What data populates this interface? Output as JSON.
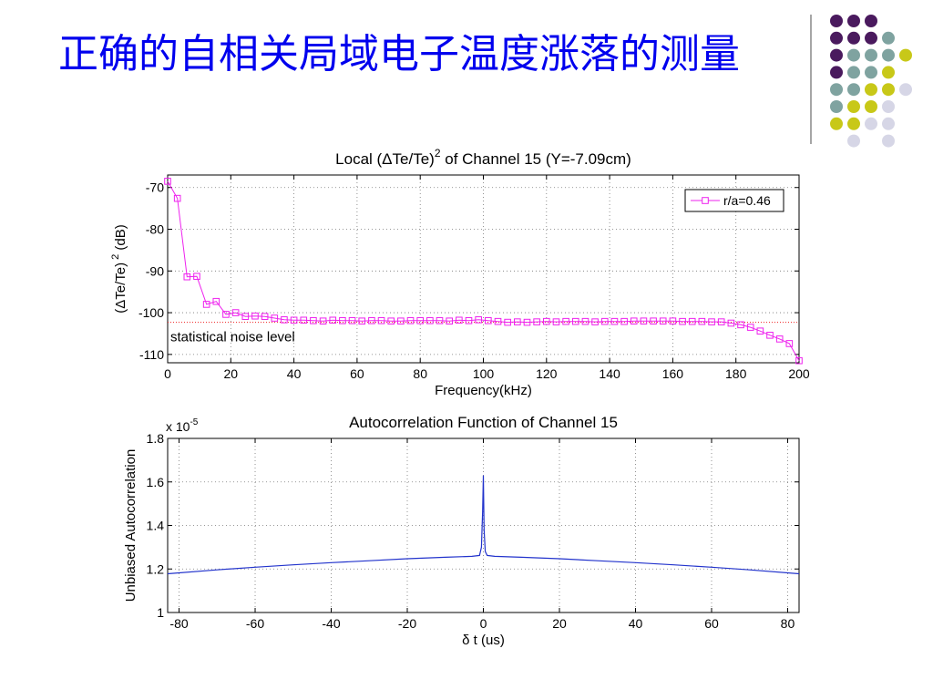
{
  "slide": {
    "title": "正确的自相关局域电子温度涨落的测量",
    "palette": {
      "purple": "#4a1a5e",
      "teal": "#7fa3a0",
      "yellow": "#c8c818",
      "lavender": "#d6d6e6",
      "title": "#0000ee",
      "divider": "#888888"
    },
    "dot_grid": [
      [
        "purple",
        "purple",
        "purple",
        null,
        null
      ],
      [
        "purple",
        "purple",
        "purple",
        "teal",
        null
      ],
      [
        "purple",
        "teal",
        "teal",
        "teal",
        "yellow"
      ],
      [
        "purple",
        "teal",
        "teal",
        "yellow",
        null
      ],
      [
        "teal",
        "teal",
        "yellow",
        "yellow",
        "lavender"
      ],
      [
        "teal",
        "yellow",
        "yellow",
        "lavender",
        null
      ],
      [
        "yellow",
        "yellow",
        "lavender",
        "lavender",
        null
      ],
      [
        null,
        "lavender",
        null,
        "lavender",
        null
      ]
    ]
  },
  "chart_data": [
    {
      "type": "line",
      "title": "Local (ΔTe/Te)",
      "title_superscript": "2",
      "title_suffix": " of Channel 15 (Y=-7.09cm)",
      "xlabel": "Frequency(kHz)",
      "ylabel": "(ΔTe/Te)",
      "ylabel_superscript": "2",
      "ylabel_suffix": " (dB)",
      "xlim": [
        0,
        200
      ],
      "ylim": [
        -112,
        -67
      ],
      "xticks": [
        0,
        20,
        40,
        60,
        80,
        100,
        120,
        140,
        160,
        180,
        200
      ],
      "yticks": [
        -110,
        -100,
        -90,
        -80,
        -70
      ],
      "grid": true,
      "legend": {
        "position": "top-right",
        "entries": [
          "r/a=0.46"
        ]
      },
      "annotation": "statistical noise level",
      "noise_level": -102.3,
      "series_color": "#ee22ee",
      "noise_color": "#ee2222",
      "series": [
        {
          "name": "r/a=0.46",
          "marker": "square",
          "x": [
            0,
            3.08,
            6.15,
            9.23,
            12.31,
            15.38,
            18.46,
            21.54,
            24.62,
            27.69,
            30.77,
            33.85,
            36.92,
            40,
            43.08,
            46.15,
            49.23,
            52.31,
            55.38,
            58.46,
            61.54,
            64.62,
            67.69,
            70.77,
            73.85,
            76.92,
            80,
            83.08,
            86.15,
            89.23,
            92.31,
            95.38,
            98.46,
            101.54,
            104.62,
            107.69,
            110.77,
            113.85,
            116.92,
            120,
            123.08,
            126.15,
            129.23,
            132.31,
            135.38,
            138.46,
            141.54,
            144.62,
            147.69,
            150.77,
            153.85,
            156.92,
            160,
            163.08,
            166.15,
            169.23,
            172.31,
            175.38,
            178.46,
            181.54,
            184.62,
            187.69,
            190.77,
            193.85,
            196.92,
            200
          ],
          "y": [
            -68.5,
            -72.6,
            -91.4,
            -91.3,
            -98,
            -97.3,
            -100.4,
            -100,
            -100.9,
            -100.8,
            -100.9,
            -101.3,
            -101.7,
            -101.8,
            -101.8,
            -101.9,
            -102,
            -101.8,
            -101.9,
            -101.9,
            -102,
            -101.9,
            -101.9,
            -102,
            -102,
            -101.9,
            -101.9,
            -101.9,
            -101.9,
            -102,
            -101.8,
            -101.9,
            -101.7,
            -101.9,
            -102.1,
            -102.3,
            -102.2,
            -102.3,
            -102.2,
            -102.1,
            -102.2,
            -102.1,
            -102.1,
            -102.1,
            -102.2,
            -102.1,
            -102.1,
            -102.1,
            -102,
            -102,
            -102,
            -102,
            -102,
            -102.1,
            -102.1,
            -102.1,
            -102.2,
            -102.2,
            -102.5,
            -102.9,
            -103.5,
            -104.4,
            -105.4,
            -106.3,
            -107.4,
            -111.5
          ]
        }
      ]
    },
    {
      "type": "line",
      "title": "Autocorrelation Function of Channel 15",
      "xlabel": "δ t (us)",
      "ylabel": "Unbiased Autocorrelation",
      "scale_label": "x 10",
      "scale_exponent": "-5",
      "xlim": [
        -83,
        83
      ],
      "ylim": [
        1.0,
        1.8
      ],
      "xticks": [
        -80,
        -60,
        -40,
        -20,
        0,
        20,
        40,
        60,
        80
      ],
      "yticks": [
        1,
        1.2,
        1.4,
        1.6,
        1.8
      ],
      "ytick_labels": [
        "1",
        "1.2",
        "1.4",
        "1.6",
        "1.8"
      ],
      "grid": true,
      "series_color": "#2233cc",
      "series": [
        {
          "name": "",
          "x": [
            -83,
            -70,
            -60,
            -50,
            -40,
            -30,
            -20,
            -10,
            -3,
            -1,
            -0.5,
            -0.2,
            0,
            0.2,
            0.5,
            1,
            3,
            10,
            20,
            30,
            40,
            50,
            60,
            70,
            83
          ],
          "y": [
            1.178,
            1.196,
            1.208,
            1.219,
            1.229,
            1.238,
            1.247,
            1.254,
            1.258,
            1.262,
            1.3,
            1.465,
            1.63,
            1.38,
            1.28,
            1.262,
            1.258,
            1.254,
            1.247,
            1.238,
            1.229,
            1.219,
            1.208,
            1.196,
            1.178
          ]
        }
      ]
    }
  ]
}
